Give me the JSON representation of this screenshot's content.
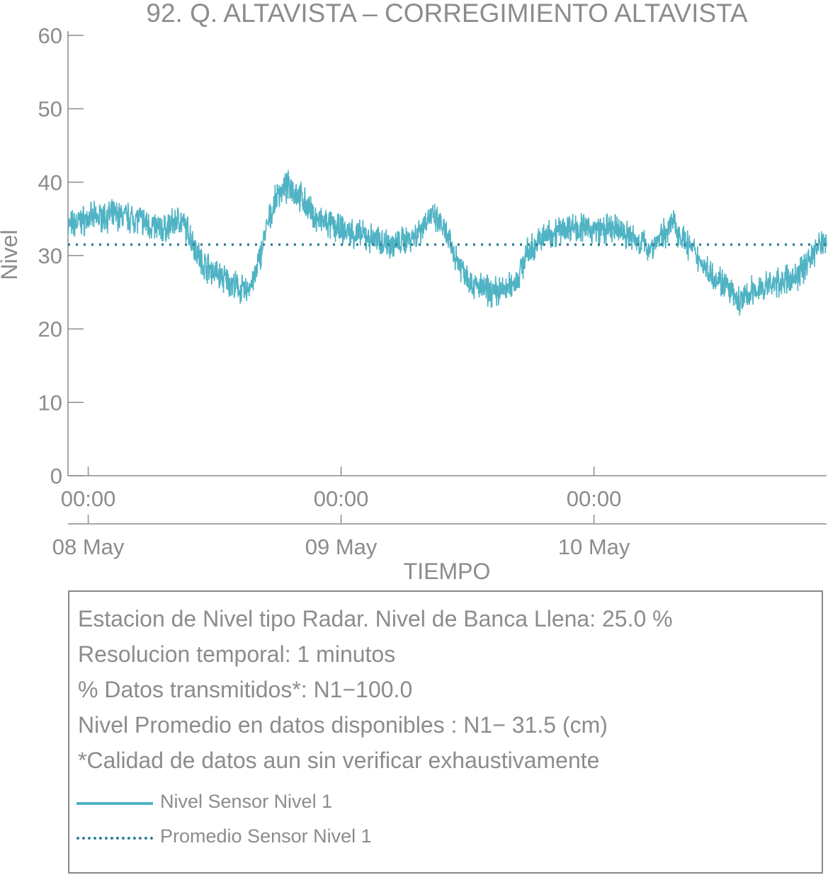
{
  "chart_data": {
    "type": "line",
    "title": "92. Q. ALTAVISTA – CORREGIMIENTO ALTAVISTA",
    "xlabel": "TIEMPO",
    "ylabel": "Nivel",
    "ylim": [
      0,
      60
    ],
    "yticks": [
      0,
      10,
      20,
      30,
      40,
      50,
      60
    ],
    "xlim_days": [
      -0.08,
      2.92
    ],
    "xticks": [
      {
        "time": "00:00",
        "date": "08 May",
        "day": 0
      },
      {
        "time": "00:00",
        "date": "09 May",
        "day": 1
      },
      {
        "time": "00:00",
        "date": "10 May",
        "day": 2
      }
    ],
    "grid": false,
    "series": [
      {
        "name": "Nivel Sensor Nivel 1",
        "style": "solid",
        "color": "#4fb3c4",
        "noise": 1.6,
        "points": [
          {
            "x": -0.08,
            "y": 34
          },
          {
            "x": 0.0,
            "y": 35
          },
          {
            "x": 0.1,
            "y": 35.5
          },
          {
            "x": 0.2,
            "y": 35
          },
          {
            "x": 0.25,
            "y": 34
          },
          {
            "x": 0.3,
            "y": 33.5
          },
          {
            "x": 0.36,
            "y": 35
          },
          {
            "x": 0.4,
            "y": 33
          },
          {
            "x": 0.45,
            "y": 29
          },
          {
            "x": 0.55,
            "y": 26.5
          },
          {
            "x": 0.62,
            "y": 25
          },
          {
            "x": 0.66,
            "y": 27
          },
          {
            "x": 0.7,
            "y": 33
          },
          {
            "x": 0.75,
            "y": 38.5
          },
          {
            "x": 0.8,
            "y": 39.5
          },
          {
            "x": 0.85,
            "y": 37.5
          },
          {
            "x": 0.9,
            "y": 35
          },
          {
            "x": 1.0,
            "y": 33.5
          },
          {
            "x": 1.1,
            "y": 32.5
          },
          {
            "x": 1.22,
            "y": 31.5
          },
          {
            "x": 1.3,
            "y": 33
          },
          {
            "x": 1.35,
            "y": 35.5
          },
          {
            "x": 1.4,
            "y": 34
          },
          {
            "x": 1.45,
            "y": 30
          },
          {
            "x": 1.52,
            "y": 26
          },
          {
            "x": 1.6,
            "y": 25
          },
          {
            "x": 1.66,
            "y": 25.5
          },
          {
            "x": 1.7,
            "y": 27
          },
          {
            "x": 1.73,
            "y": 30
          },
          {
            "x": 1.8,
            "y": 32.5
          },
          {
            "x": 1.9,
            "y": 34
          },
          {
            "x": 2.0,
            "y": 33.5
          },
          {
            "x": 2.1,
            "y": 33.5
          },
          {
            "x": 2.22,
            "y": 31
          },
          {
            "x": 2.28,
            "y": 33
          },
          {
            "x": 2.31,
            "y": 34.5
          },
          {
            "x": 2.36,
            "y": 32
          },
          {
            "x": 2.45,
            "y": 28
          },
          {
            "x": 2.52,
            "y": 26
          },
          {
            "x": 2.57,
            "y": 23.5
          },
          {
            "x": 2.62,
            "y": 25
          },
          {
            "x": 2.7,
            "y": 26
          },
          {
            "x": 2.8,
            "y": 27
          },
          {
            "x": 2.86,
            "y": 30
          },
          {
            "x": 2.92,
            "y": 32.5
          }
        ]
      },
      {
        "name": "Promedio Sensor Nivel 1",
        "style": "dotted",
        "color": "#2e7f94",
        "value": 31.5
      }
    ]
  },
  "notes": [
    "Estacion de Nivel tipo Radar. Nivel de Banca Llena: 25.0 %",
    "Resolucion temporal: 1 minutos",
    "% Datos transmitidos*: N1−100.0",
    "Nivel Promedio en datos disponibles : N1− 31.5 (cm)",
    "*Calidad de datos aun sin verificar exhaustivamente"
  ],
  "legend": [
    {
      "label": "Nivel Sensor Nivel 1",
      "style": "solid",
      "color": "#4fb3c4"
    },
    {
      "label": "Promedio Sensor Nivel 1",
      "style": "dotted",
      "color": "#2e7f94"
    }
  ]
}
